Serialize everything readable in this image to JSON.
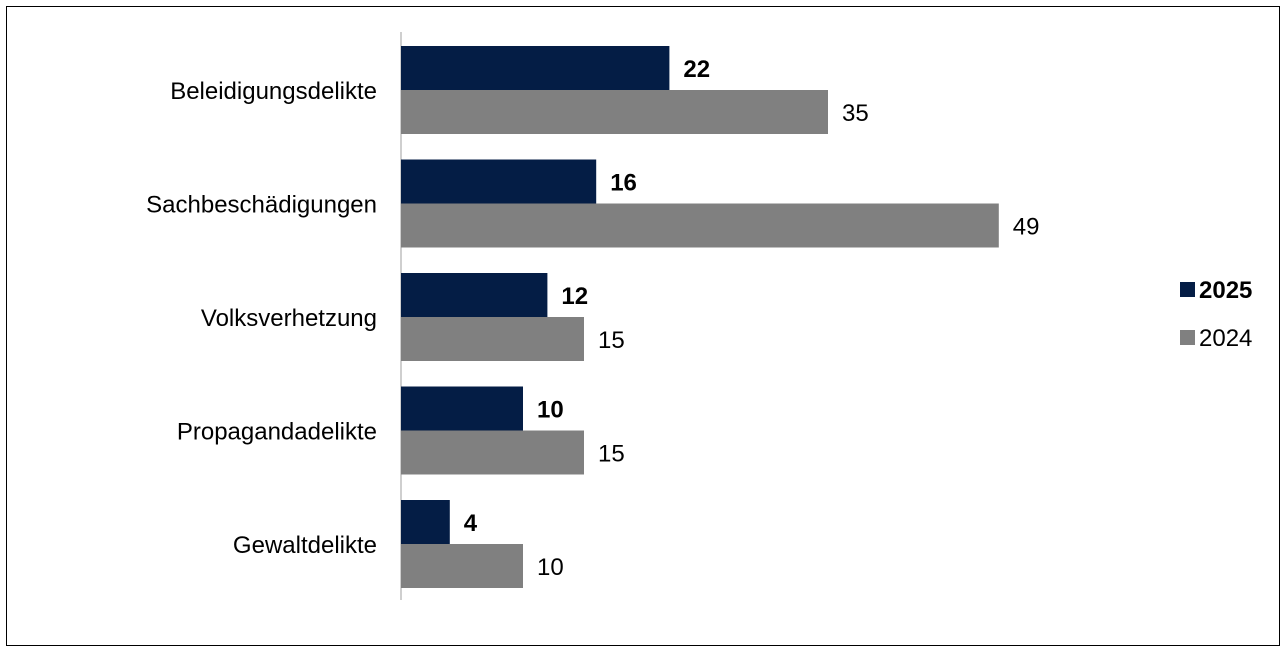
{
  "chart_data": {
    "type": "bar",
    "orientation": "horizontal",
    "categories": [
      "Beleidigungsdelikte",
      "Sachbeschädigungen",
      "Volksverhetzung",
      "Propagandadelikte",
      "Gewaltdelikte"
    ],
    "series": [
      {
        "name": "2025",
        "values": [
          22,
          16,
          12,
          10,
          4
        ],
        "color": "#041d45",
        "label_bold": true
      },
      {
        "name": "2024",
        "values": [
          35,
          49,
          15,
          15,
          10
        ],
        "color": "#808080",
        "label_bold": false
      }
    ],
    "xlim": [
      0,
      55
    ],
    "grid": false,
    "legend_position": "right"
  }
}
